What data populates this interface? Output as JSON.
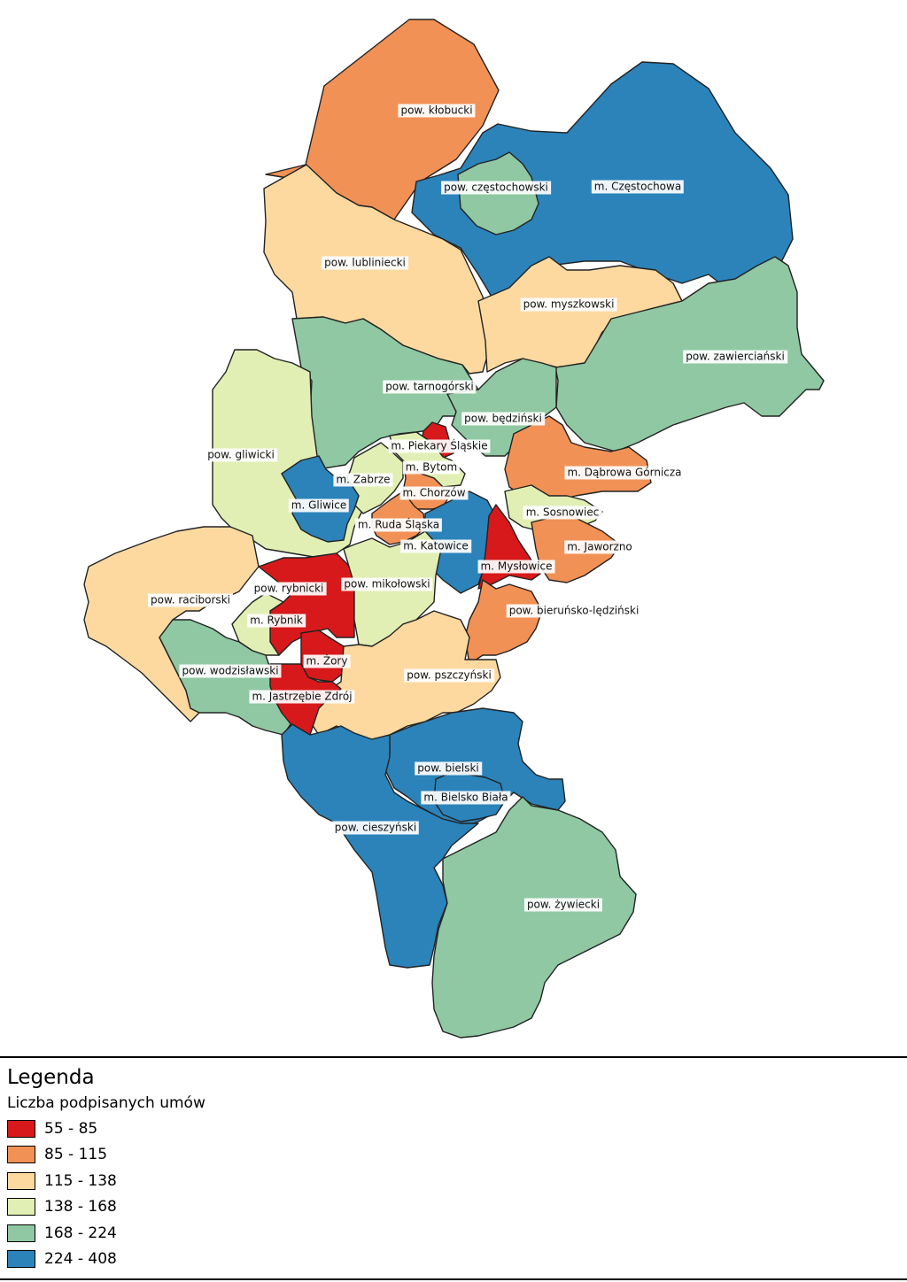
{
  "colors": {
    "class_55_85": "#d7191c",
    "class_85_115": "#f29156",
    "class_115_138": "#fdd9a0",
    "class_138_168": "#e1efb4",
    "class_168_224": "#8fc8a2",
    "class_224_408": "#2b83ba",
    "border": "#222222"
  },
  "regions": [
    {
      "name": "pow. kłobucki",
      "class": "85 - 115",
      "color": "#f29156"
    },
    {
      "name": "m. Częstochowa",
      "class": "224 - 408",
      "color": "#2b83ba"
    },
    {
      "name": "pow. częstochowski",
      "class": "168 - 224",
      "color": "#8fc8a2"
    },
    {
      "name": "pow. lubliniecki",
      "class": "115 - 138",
      "color": "#fdd9a0"
    },
    {
      "name": "pow. myszkowski",
      "class": "115 - 138",
      "color": "#fdd9a0"
    },
    {
      "name": "pow. zawierciański",
      "class": "168 - 224",
      "color": "#8fc8a2"
    },
    {
      "name": "pow. tarnogórski",
      "class": "168 - 224",
      "color": "#8fc8a2"
    },
    {
      "name": "pow. będziński",
      "class": "168 - 224",
      "color": "#8fc8a2"
    },
    {
      "name": "pow. gliwicki",
      "class": "138 - 168",
      "color": "#e1efb4"
    },
    {
      "name": "m. Piekary Śląskie",
      "class": "55 - 85",
      "color": "#d7191c"
    },
    {
      "name": "m. Bytom",
      "class": "138 - 168",
      "color": "#e1efb4"
    },
    {
      "name": "m. Zabrze",
      "class": "138 - 168",
      "color": "#e1efb4"
    },
    {
      "name": "m. Dąbrowa Górnicza",
      "class": "85 - 115",
      "color": "#f29156"
    },
    {
      "name": "m. Gliwice",
      "class": "224 - 408",
      "color": "#2b83ba"
    },
    {
      "name": "m. Chorzów",
      "class": "85 - 115",
      "color": "#f29156"
    },
    {
      "name": "m. Sosnowiec",
      "class": "138 - 168",
      "color": "#e1efb4"
    },
    {
      "name": "m. Ruda Śląska",
      "class": "85 - 115",
      "color": "#f29156"
    },
    {
      "name": "m. Katowice",
      "class": "224 - 408",
      "color": "#2b83ba"
    },
    {
      "name": "m. Jaworzno",
      "class": "85 - 115",
      "color": "#f29156"
    },
    {
      "name": "m. Mysłowice",
      "class": "55 - 85",
      "color": "#d7191c"
    },
    {
      "name": "pow. rybnicki",
      "class": "55 - 85",
      "color": "#d7191c"
    },
    {
      "name": "pow. mikołowski",
      "class": "138 - 168",
      "color": "#e1efb4"
    },
    {
      "name": "pow. raciborski",
      "class": "115 - 138",
      "color": "#fdd9a0"
    },
    {
      "name": "pow. bieruńsko-lędziński",
      "class": "85 - 115",
      "color": "#f29156"
    },
    {
      "name": "m. Rybnik",
      "class": "138 - 168",
      "color": "#e1efb4"
    },
    {
      "name": "m. Żory",
      "class": "55 - 85",
      "color": "#d7191c"
    },
    {
      "name": "pow. wodzisławski",
      "class": "168 - 224",
      "color": "#8fc8a2"
    },
    {
      "name": "pow. pszczyński",
      "class": "115 - 138",
      "color": "#fdd9a0"
    },
    {
      "name": "m. Jastrzębie Zdrój",
      "class": "55 - 85",
      "color": "#d7191c"
    },
    {
      "name": "pow. bielski",
      "class": "224 - 408",
      "color": "#2b83ba"
    },
    {
      "name": "m. Bielsko Biała",
      "class": "224 - 408",
      "color": "#2b83ba"
    },
    {
      "name": "pow. cieszyński",
      "class": "224 - 408",
      "color": "#2b83ba"
    },
    {
      "name": "pow. żywiecki",
      "class": "168 - 224",
      "color": "#8fc8a2"
    }
  ],
  "legend": {
    "title": "Legenda",
    "subtitle": "Liczba podpisanych umów",
    "items": [
      {
        "label": "55 - 85",
        "color": "#d7191c"
      },
      {
        "label": "85 - 115",
        "color": "#f29156"
      },
      {
        "label": "115 - 138",
        "color": "#fdd9a0"
      },
      {
        "label": "138 - 168",
        "color": "#e1efb4"
      },
      {
        "label": "168 - 224",
        "color": "#8fc8a2"
      },
      {
        "label": "224 - 408",
        "color": "#2b83ba"
      }
    ]
  }
}
